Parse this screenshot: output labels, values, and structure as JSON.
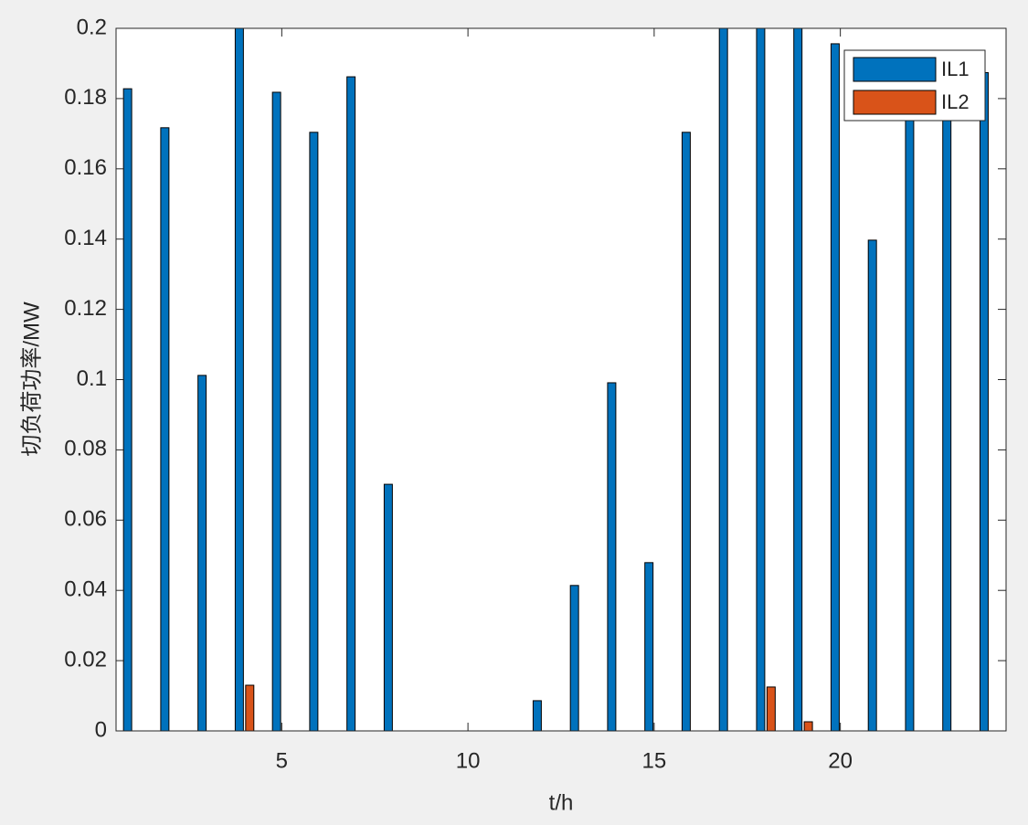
{
  "chart_data": {
    "type": "bar",
    "x_label": "t/h",
    "y_label": "切负荷功率/MW",
    "x": [
      1,
      2,
      3,
      4,
      5,
      6,
      7,
      8,
      9,
      10,
      11,
      12,
      13,
      14,
      15,
      16,
      17,
      18,
      19,
      20,
      21,
      22,
      23,
      24
    ],
    "series": [
      {
        "name": "IL1",
        "color": "#0072bd",
        "values": [
          0.1828,
          0.1717,
          0.1012,
          0.2,
          0.1818,
          0.1704,
          0.1862,
          0.0702,
          0,
          0,
          0,
          0.0086,
          0.0414,
          0.0991,
          0.0479,
          0.1704,
          0.2,
          0.2,
          0.2,
          0.1956,
          0.1397,
          0.18,
          0.18,
          0.1874
        ]
      },
      {
        "name": "IL2",
        "color": "#d95319",
        "values": [
          0,
          0,
          0,
          0.013,
          0,
          0,
          0,
          0,
          0,
          0,
          0,
          0,
          0,
          0,
          0,
          0,
          0,
          0.0125,
          0.0026,
          0,
          0,
          0,
          0,
          0
        ]
      }
    ],
    "xlim": [
      0.55,
      24.45
    ],
    "xticks": [
      5,
      10,
      15,
      20
    ],
    "ylim": [
      0,
      0.2
    ],
    "yticks": [
      0,
      0.02,
      0.04,
      0.06,
      0.08,
      0.1,
      0.12,
      0.14,
      0.16,
      0.18,
      0.2
    ],
    "legend": "top-right"
  }
}
